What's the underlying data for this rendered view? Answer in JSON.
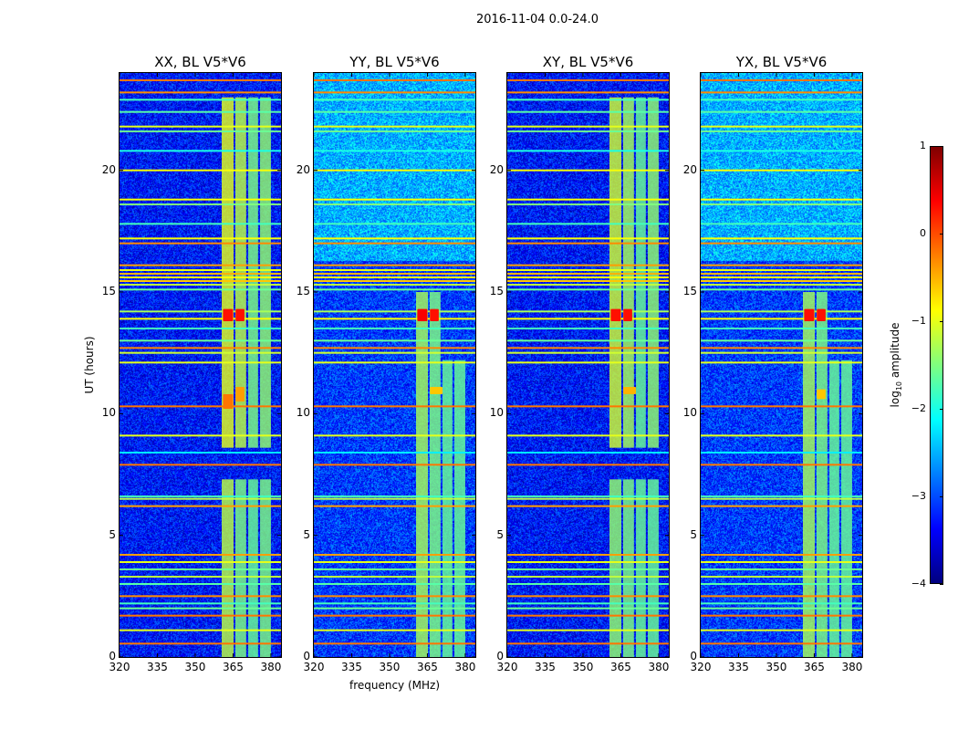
{
  "suptitle": "2016-11-04 0.0-24.0",
  "xlabel": "frequency (MHz)",
  "ylabel": "UT (hours)",
  "colorbar": {
    "label_prefix": "log",
    "label_sub": "10",
    "label_suffix": " amplitude",
    "ticks": [
      "1",
      "0",
      "−1",
      "−2",
      "−3",
      "−4"
    ],
    "tick_values": [
      1,
      0,
      -1,
      -2,
      -3,
      -4
    ],
    "range": [
      -4,
      1
    ],
    "colormap": "jet"
  },
  "chart_data": [
    {
      "type": "heatmap",
      "title": "XX, BL V5*V6",
      "xlim": [
        320,
        384
      ],
      "ylim": [
        0,
        24
      ],
      "xticks": [
        320,
        335,
        350,
        365,
        380
      ],
      "yticks": [
        0,
        5,
        10,
        15,
        20
      ],
      "background": -3.3,
      "upper_background": -3.3,
      "bands": [
        {
          "f": [
            360.5,
            365.2
          ],
          "t": [
            0,
            7.3
          ],
          "level": -1.2
        },
        {
          "f": [
            365.9,
            370.2
          ],
          "t": [
            0,
            7.3
          ],
          "level": -1.5
        },
        {
          "f": [
            371,
            374.9
          ],
          "t": [
            0,
            7.3
          ],
          "level": -1.6
        },
        {
          "f": [
            375.7,
            380
          ],
          "t": [
            0,
            7.3
          ],
          "level": -1.5
        },
        {
          "f": [
            360.5,
            365.2
          ],
          "t": [
            8.6,
            23
          ],
          "level": -1.0
        },
        {
          "f": [
            365.9,
            370.2
          ],
          "t": [
            8.6,
            23
          ],
          "level": -1.2
        },
        {
          "f": [
            371,
            374.9
          ],
          "t": [
            8.6,
            23
          ],
          "level": -1.5
        },
        {
          "f": [
            375.7,
            380
          ],
          "t": [
            8.6,
            23
          ],
          "level": -1.4
        }
      ],
      "blobs": [
        {
          "f": [
            361,
            365
          ],
          "t": [
            13.8,
            14.3
          ],
          "level": 0.3
        },
        {
          "f": [
            366,
            369.5
          ],
          "t": [
            13.8,
            14.3
          ],
          "level": 0.3
        },
        {
          "f": [
            361,
            365
          ],
          "t": [
            10.2,
            10.8
          ],
          "level": -0.2
        },
        {
          "f": [
            366,
            369.5
          ],
          "t": [
            10.5,
            11.1
          ],
          "level": -0.4
        }
      ]
    },
    {
      "type": "heatmap",
      "title": "YY, BL V5*V6",
      "xlim": [
        320,
        384
      ],
      "ylim": [
        0,
        24
      ],
      "xticks": [
        320,
        335,
        350,
        365,
        380
      ],
      "yticks": [
        0,
        5,
        10,
        15,
        20
      ],
      "background": -3.1,
      "upper_background": -2.5,
      "bands": [
        {
          "f": [
            360.5,
            365.2
          ],
          "t": [
            0,
            15
          ],
          "level": -1.3
        },
        {
          "f": [
            365.9,
            370.2
          ],
          "t": [
            0,
            15
          ],
          "level": -1.5
        },
        {
          "f": [
            371,
            374.9
          ],
          "t": [
            0,
            12.2
          ],
          "level": -1.6
        },
        {
          "f": [
            375.7,
            380
          ],
          "t": [
            0,
            12.2
          ],
          "level": -1.6
        }
      ],
      "blobs": [
        {
          "f": [
            361,
            365
          ],
          "t": [
            13.8,
            14.3
          ],
          "level": 0.4
        },
        {
          "f": [
            366,
            369.5
          ],
          "t": [
            13.8,
            14.3
          ],
          "level": 0.3
        },
        {
          "f": [
            366,
            371
          ],
          "t": [
            10.8,
            11.1
          ],
          "level": -0.6
        }
      ]
    },
    {
      "type": "heatmap",
      "title": "XY, BL V5*V6",
      "xlim": [
        320,
        384
      ],
      "ylim": [
        0,
        24
      ],
      "xticks": [
        320,
        335,
        350,
        365,
        380
      ],
      "yticks": [
        0,
        5,
        10,
        15,
        20
      ],
      "background": -3.3,
      "upper_background": -3.3,
      "bands": [
        {
          "f": [
            360.5,
            365.2
          ],
          "t": [
            0,
            7.3
          ],
          "level": -1.4
        },
        {
          "f": [
            365.9,
            370.2
          ],
          "t": [
            0,
            7.3
          ],
          "level": -1.5
        },
        {
          "f": [
            371,
            374.9
          ],
          "t": [
            0,
            7.3
          ],
          "level": -1.6
        },
        {
          "f": [
            375.7,
            380
          ],
          "t": [
            0,
            7.3
          ],
          "level": -1.6
        },
        {
          "f": [
            360.5,
            365.2
          ],
          "t": [
            8.6,
            23
          ],
          "level": -1.1
        },
        {
          "f": [
            365.9,
            370.2
          ],
          "t": [
            8.6,
            23
          ],
          "level": -1.3
        },
        {
          "f": [
            371,
            374.9
          ],
          "t": [
            8.6,
            23
          ],
          "level": -1.6
        },
        {
          "f": [
            375.7,
            380
          ],
          "t": [
            8.6,
            23
          ],
          "level": -1.4
        }
      ],
      "blobs": [
        {
          "f": [
            361,
            365
          ],
          "t": [
            13.8,
            14.3
          ],
          "level": 0.3
        },
        {
          "f": [
            366,
            369.5
          ],
          "t": [
            13.8,
            14.3
          ],
          "level": 0.3
        },
        {
          "f": [
            366,
            371
          ],
          "t": [
            10.8,
            11.1
          ],
          "level": -0.5
        }
      ]
    },
    {
      "type": "heatmap",
      "title": "YX, BL V5*V6",
      "xlim": [
        320,
        384
      ],
      "ylim": [
        0,
        24
      ],
      "xticks": [
        320,
        335,
        350,
        365,
        380
      ],
      "yticks": [
        0,
        5,
        10,
        15,
        20
      ],
      "background": -3.1,
      "upper_background": -2.5,
      "bands": [
        {
          "f": [
            360.5,
            365.2
          ],
          "t": [
            0,
            15
          ],
          "level": -1.3
        },
        {
          "f": [
            365.9,
            370.2
          ],
          "t": [
            0,
            15
          ],
          "level": -1.5
        },
        {
          "f": [
            371,
            374.9
          ],
          "t": [
            0,
            12.2
          ],
          "level": -1.6
        },
        {
          "f": [
            375.7,
            380
          ],
          "t": [
            0,
            12.2
          ],
          "level": -1.6
        }
      ],
      "blobs": [
        {
          "f": [
            361,
            365
          ],
          "t": [
            13.8,
            14.3
          ],
          "level": 0.3
        },
        {
          "f": [
            366,
            369.5
          ],
          "t": [
            13.8,
            14.3
          ],
          "level": 0.3
        },
        {
          "f": [
            366,
            369.5
          ],
          "t": [
            10.6,
            11.0
          ],
          "level": -0.6
        }
      ]
    }
  ],
  "rfi_lines": [
    {
      "ut": 23.7,
      "level": -0.2
    },
    {
      "ut": 23.2,
      "level": -0.3
    },
    {
      "ut": 22.9,
      "level": -1.8
    },
    {
      "ut": 22.4,
      "level": -1.7
    },
    {
      "ut": 21.8,
      "level": -1.0
    },
    {
      "ut": 21.6,
      "level": -1.6
    },
    {
      "ut": 20.8,
      "level": -2.0
    },
    {
      "ut": 20.0,
      "level": -0.9
    },
    {
      "ut": 18.8,
      "level": -0.9
    },
    {
      "ut": 18.6,
      "level": -1.5
    },
    {
      "ut": 17.8,
      "level": -1.8
    },
    {
      "ut": 17.2,
      "level": -0.9
    },
    {
      "ut": 17.0,
      "level": -0.3
    },
    {
      "ut": 16.1,
      "level": -0.4
    },
    {
      "ut": 15.9,
      "level": -1.0
    },
    {
      "ut": 15.75,
      "level": -0.5
    },
    {
      "ut": 15.6,
      "level": -0.9
    },
    {
      "ut": 15.45,
      "level": -0.6
    },
    {
      "ut": 15.3,
      "level": -1.2
    },
    {
      "ut": 15.1,
      "level": -1.6
    },
    {
      "ut": 14.2,
      "level": -1.3
    },
    {
      "ut": 13.9,
      "level": -0.9
    },
    {
      "ut": 13.5,
      "level": -1.8
    },
    {
      "ut": 13.0,
      "level": -1.6
    },
    {
      "ut": 12.7,
      "level": -0.3
    },
    {
      "ut": 12.5,
      "level": -1.1
    },
    {
      "ut": 12.1,
      "level": -1.0
    },
    {
      "ut": 10.3,
      "level": -0.2
    },
    {
      "ut": 9.1,
      "level": -1.0
    },
    {
      "ut": 8.4,
      "level": -2.2
    },
    {
      "ut": 7.9,
      "level": -0.2
    },
    {
      "ut": 6.6,
      "level": -1.8
    },
    {
      "ut": 6.5,
      "level": -1.2
    },
    {
      "ut": 6.2,
      "level": -0.4
    },
    {
      "ut": 4.2,
      "level": -0.4
    },
    {
      "ut": 3.9,
      "level": -1.0
    },
    {
      "ut": 3.6,
      "level": -1.6
    },
    {
      "ut": 3.3,
      "level": -1.2
    },
    {
      "ut": 3.0,
      "level": -1.7
    },
    {
      "ut": 2.5,
      "level": -0.3
    },
    {
      "ut": 2.2,
      "level": -1.8
    },
    {
      "ut": 2.0,
      "level": -1.6
    },
    {
      "ut": 1.7,
      "level": -0.2
    },
    {
      "ut": 1.1,
      "level": -1.0
    },
    {
      "ut": 0.55,
      "level": -0.2
    }
  ]
}
